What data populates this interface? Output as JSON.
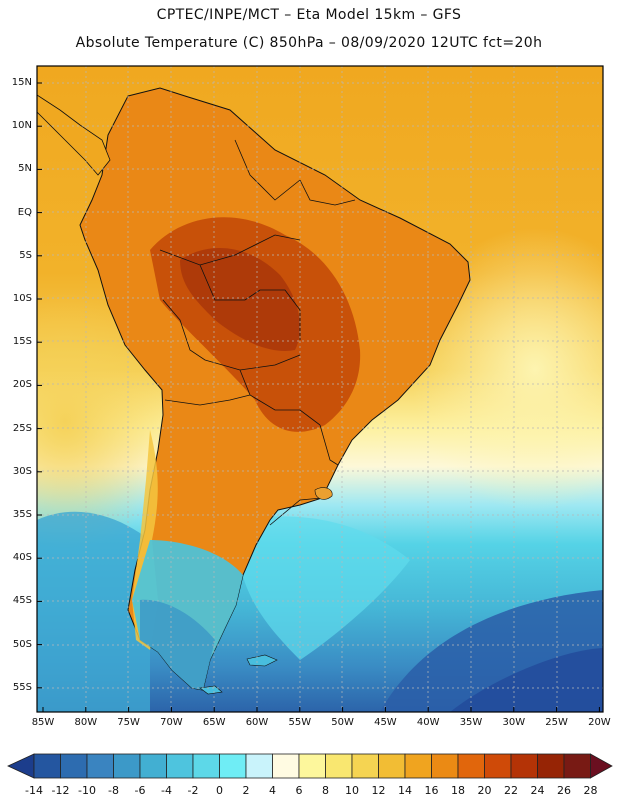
{
  "title": {
    "line1": "CPTEC/INPE/MCT –  Eta Model 15km – GFS",
    "line2": "Absolute Temperature (C) 850hPa – 08/09/2020 12UTC fct=20h"
  },
  "map": {
    "lat_labels": [
      "15N",
      "10N",
      "5N",
      "EQ",
      "5S",
      "10S",
      "15S",
      "20S",
      "25S",
      "30S",
      "35S",
      "40S",
      "45S",
      "50S",
      "55S"
    ],
    "lon_labels": [
      "85W",
      "80W",
      "75W",
      "70W",
      "65W",
      "60W",
      "55W",
      "50W",
      "45W",
      "40W",
      "35W",
      "30W",
      "25W",
      "20W"
    ]
  },
  "colorbar": {
    "labels": [
      "-14",
      "-12",
      "-10",
      "-8",
      "-6",
      "-4",
      "-2",
      "0",
      "2",
      "4",
      "6",
      "8",
      "10",
      "12",
      "14",
      "16",
      "18",
      "20",
      "22",
      "24",
      "26",
      "28"
    ],
    "colors": [
      "#1c3d8c",
      "#2456a0",
      "#2d6cb0",
      "#3a84c0",
      "#3c99c8",
      "#42afd2",
      "#4ec4de",
      "#5dd8e8",
      "#6fedf5",
      "#c9f3fb",
      "#fffbe2",
      "#fdf79c",
      "#f9e770",
      "#f5d452",
      "#f2bd34",
      "#f0a41f",
      "#eb8a14",
      "#e1660c",
      "#cf4a08",
      "#b43306",
      "#962405",
      "#781a14",
      "#6a0f20"
    ]
  }
}
